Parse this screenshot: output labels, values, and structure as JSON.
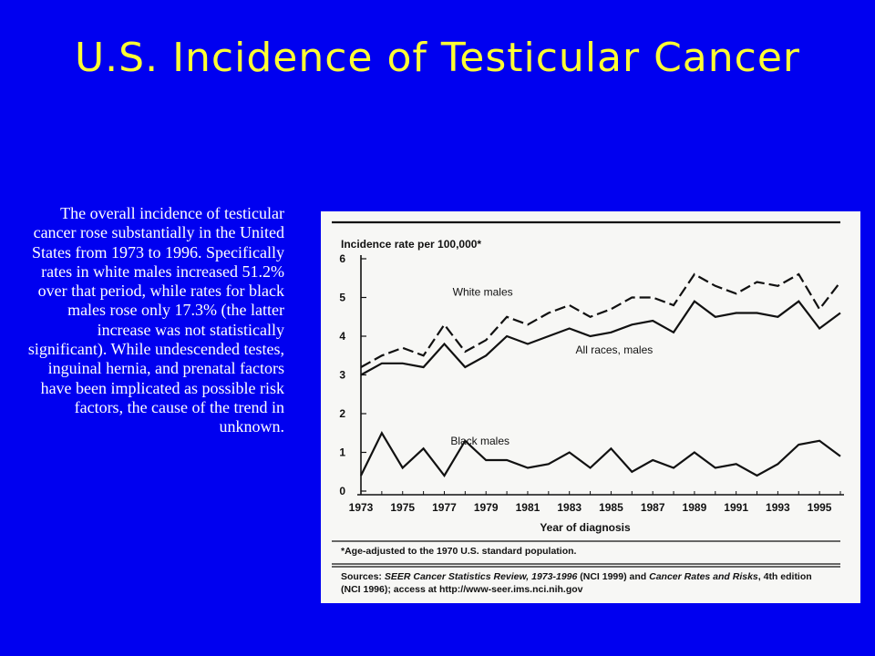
{
  "slide": {
    "title": "U.S. Incidence of Testicular Cancer",
    "body": "The overall incidence of testicular cancer rose substantially in the United States from 1973 to 1996. Specifically rates in white males increased 51.2% over that period, while rates for black males rose only 17.3% (the latter increase was not statistically significant). While undescended testes, inguinal hernia, and prenatal factors have been implicated as possible risk  factors, the cause of the trend in unknown."
  },
  "colors": {
    "background": "#0000f0",
    "title": "#ffff33",
    "body_text": "#ffffff",
    "figure_bg": "#f7f7f5",
    "ink": "#111111"
  },
  "chart_data": {
    "type": "line",
    "ylabel": "Incidence rate per 100,000*",
    "xlabel": "Year of diagnosis",
    "ylim": [
      0,
      6
    ],
    "yticks": [
      0,
      1,
      2,
      3,
      4,
      5,
      6
    ],
    "xlim": [
      1973,
      1996
    ],
    "xticks": [
      1973,
      1975,
      1977,
      1979,
      1981,
      1983,
      1985,
      1987,
      1989,
      1991,
      1993,
      1995
    ],
    "grid": false,
    "x": [
      1973,
      1974,
      1975,
      1976,
      1977,
      1978,
      1979,
      1980,
      1981,
      1982,
      1983,
      1984,
      1985,
      1986,
      1987,
      1988,
      1989,
      1990,
      1991,
      1992,
      1993,
      1994,
      1995,
      1996
    ],
    "series": [
      {
        "name": "White males",
        "style": "dashed",
        "values": [
          3.2,
          3.5,
          3.7,
          3.5,
          4.3,
          3.6,
          3.9,
          4.5,
          4.3,
          4.6,
          4.8,
          4.5,
          4.7,
          5.0,
          5.0,
          4.8,
          5.6,
          5.3,
          5.1,
          5.4,
          5.3,
          5.6,
          4.7,
          5.4
        ]
      },
      {
        "name": "All races, males",
        "style": "solid",
        "values": [
          3.0,
          3.3,
          3.3,
          3.2,
          3.8,
          3.2,
          3.5,
          4.0,
          3.8,
          4.0,
          4.2,
          4.0,
          4.1,
          4.3,
          4.4,
          4.1,
          4.9,
          4.5,
          4.6,
          4.6,
          4.5,
          4.9,
          4.2,
          4.6
        ]
      },
      {
        "name": "Black males",
        "style": "solid",
        "values": [
          0.4,
          1.5,
          0.6,
          1.1,
          0.4,
          1.3,
          0.8,
          0.8,
          0.6,
          0.7,
          1.0,
          0.6,
          1.1,
          0.5,
          0.8,
          0.6,
          1.0,
          0.6,
          0.7,
          0.4,
          0.7,
          1.2,
          1.3,
          0.9
        ]
      }
    ],
    "footnote": "*Age-adjusted to the 1970 U.S. standard population.",
    "source": {
      "prefix": "Sources: ",
      "ref1": "SEER Cancer Statistics Review, 1973-1996",
      "mid": " (NCI 1999) and ",
      "ref2": "Cancer Rates and Risks",
      "suffix": ", 4th edition",
      "line2": "(NCI 1996); access at http://www-seer.ims.nci.nih.gov"
    }
  }
}
